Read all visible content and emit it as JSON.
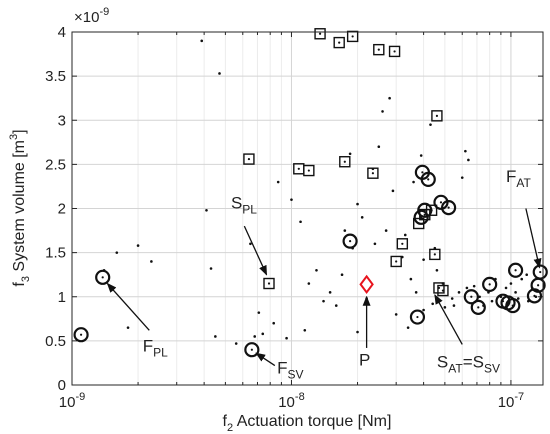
{
  "chart_data": {
    "type": "scatter",
    "xlabel_main": "f",
    "xlabel_sub": "2",
    "xlabel_rest": " Actuation torque [Nm]",
    "ylabel_main": "f",
    "ylabel_sub": "3",
    "ylabel_rest": " System volume [m",
    "ylabel_sup": "3",
    "ylabel_end": "]",
    "x_scale": "log",
    "xlim": [
      1e-09,
      1.4e-07
    ],
    "ylim": [
      0,
      4
    ],
    "y_multiplier_base": "×10",
    "y_multiplier_exp": "-9",
    "grid": true,
    "x_ticks": [
      {
        "value": 1e-09,
        "base": "10",
        "exp": "-9"
      },
      {
        "value": 1e-08,
        "base": "10",
        "exp": "-8"
      },
      {
        "value": 1e-07,
        "base": "10",
        "exp": "-7"
      }
    ],
    "y_ticks": [
      {
        "value": 0,
        "label": "0"
      },
      {
        "value": 0.5,
        "label": "0.5"
      },
      {
        "value": 1,
        "label": "1"
      },
      {
        "value": 1.5,
        "label": "1.5"
      },
      {
        "value": 2,
        "label": "2"
      },
      {
        "value": 2.5,
        "label": "2.5"
      },
      {
        "value": 3,
        "label": "3"
      },
      {
        "value": 3.5,
        "label": "3.5"
      },
      {
        "value": 4,
        "label": "4"
      }
    ],
    "dots": [
      [
        3.9e-09,
        3.9
      ],
      [
        4.7e-09,
        3.53
      ],
      [
        1.6e-09,
        1.5
      ],
      [
        2e-09,
        1.58
      ],
      [
        2.3e-09,
        1.4
      ],
      [
        1.4e-09,
        1.3
      ],
      [
        4.3e-09,
        1.32
      ],
      [
        4.5e-09,
        0.55
      ],
      [
        4.1e-09,
        1.98
      ],
      [
        1.8e-09,
        0.65
      ],
      [
        6.5e-09,
        1.6
      ],
      [
        7.1e-09,
        0.82
      ],
      [
        7.4e-09,
        0.58
      ],
      [
        8.3e-09,
        0.7
      ],
      [
        9.5e-09,
        0.53
      ],
      [
        1.1e-08,
        1.85
      ],
      [
        1.2e-08,
        1.15
      ],
      [
        1.4e-08,
        0.95
      ],
      [
        1.5e-08,
        1.05
      ],
      [
        1.7e-08,
        1.25
      ],
      [
        1.9e-08,
        1.55
      ],
      [
        2e-08,
        2.05
      ],
      [
        2.1e-08,
        1.9
      ],
      [
        2.2e-08,
        0.98
      ],
      [
        2.5e-08,
        2.7
      ],
      [
        2.6e-08,
        3.1
      ],
      [
        2.8e-08,
        3.25
      ],
      [
        2.9e-08,
        2.2
      ],
      [
        3.2e-08,
        1.45
      ],
      [
        3.3e-08,
        1.7
      ],
      [
        3.5e-08,
        1.2
      ],
      [
        2.7e-08,
        1.75
      ],
      [
        2.4e-08,
        1.6
      ],
      [
        1.3e-08,
        1.3
      ],
      [
        1.6e-08,
        0.9
      ],
      [
        3e-08,
        0.8
      ],
      [
        3.6e-08,
        2.3
      ],
      [
        3.9e-08,
        2.6
      ],
      [
        4.3e-08,
        2.95
      ],
      [
        4.5e-08,
        1.55
      ],
      [
        4.6e-08,
        1.3
      ],
      [
        4.9e-08,
        1.15
      ],
      [
        5.4e-08,
        0.98
      ],
      [
        5.8e-08,
        1.05
      ],
      [
        6.3e-08,
        1.1
      ],
      [
        6.8e-08,
        1.12
      ],
      [
        7.2e-08,
        1.0
      ],
      [
        7.9e-08,
        1.05
      ],
      [
        8.5e-08,
        1.2
      ],
      [
        9e-08,
        1.0
      ],
      [
        9.5e-08,
        1.1
      ],
      [
        1e-07,
        1.15
      ],
      [
        1.05e-07,
        1.05
      ],
      [
        1.12e-07,
        1.2
      ],
      [
        1.18e-07,
        1.25
      ],
      [
        1.25e-07,
        1.1
      ],
      [
        1.3e-07,
        1.0
      ],
      [
        6.2e-08,
        2.65
      ],
      [
        6.4e-08,
        2.55
      ],
      [
        6e-08,
        2.35
      ],
      [
        3.4e-08,
        0.65
      ],
      [
        4e-08,
        0.85
      ],
      [
        4.4e-08,
        0.92
      ],
      [
        5e-08,
        0.88
      ],
      [
        5.5e-08,
        0.9
      ],
      [
        1e-08,
        2.1
      ],
      [
        8.7e-09,
        2.3
      ],
      [
        2.35e-08,
        2.45
      ],
      [
        1.85e-08,
        2.62
      ],
      [
        4e-08,
        1.42
      ],
      [
        3.7e-08,
        1.05
      ],
      [
        7.5e-08,
        0.9
      ],
      [
        8.2e-08,
        0.95
      ],
      [
        1.08e-07,
        0.98
      ],
      [
        1.2e-07,
        0.95
      ],
      [
        2e-08,
        0.6
      ],
      [
        1.75e-08,
        1.75
      ],
      [
        5.6e-09,
        0.47
      ],
      [
        6.8e-09,
        0.55
      ],
      [
        1.15e-08,
        0.62
      ]
    ],
    "squares": [
      [
        1.35e-08,
        3.98
      ],
      [
        1.65e-08,
        3.88
      ],
      [
        1.9e-08,
        3.95
      ],
      [
        2.5e-08,
        3.8
      ],
      [
        2.95e-08,
        3.78
      ],
      [
        4.6e-08,
        3.05
      ],
      [
        6.4e-09,
        2.56
      ],
      [
        1.08e-08,
        2.45
      ],
      [
        1.2e-08,
        2.43
      ],
      [
        1.75e-08,
        2.53
      ],
      [
        2.35e-08,
        2.4
      ],
      [
        3e-08,
        1.4
      ],
      [
        3.2e-08,
        1.6
      ],
      [
        3.8e-08,
        1.83
      ],
      [
        4.05e-08,
        1.93
      ],
      [
        4.35e-08,
        1.98
      ],
      [
        4.5e-08,
        1.48
      ],
      [
        4.7e-08,
        1.1
      ],
      [
        4.9e-08,
        1.07
      ],
      [
        7.9e-09,
        1.15
      ]
    ],
    "circles": [
      [
        1.1e-09,
        0.57
      ],
      [
        1.38e-09,
        1.22
      ],
      [
        6.6e-09,
        0.4
      ],
      [
        1.85e-08,
        1.63
      ],
      [
        3.75e-08,
        0.77
      ],
      [
        3.95e-08,
        2.41
      ],
      [
        4.2e-08,
        2.33
      ],
      [
        3.9e-08,
        1.9
      ],
      [
        4.05e-08,
        1.98
      ],
      [
        4.8e-08,
        2.07
      ],
      [
        5.2e-08,
        2.01
      ],
      [
        6.6e-08,
        1.0
      ],
      [
        7.1e-08,
        0.88
      ],
      [
        8e-08,
        1.14
      ],
      [
        9.2e-08,
        0.95
      ],
      [
        9.7e-08,
        0.93
      ],
      [
        1.02e-07,
        0.9
      ],
      [
        1.05e-07,
        1.3
      ],
      [
        1.28e-07,
        1.01
      ],
      [
        1.33e-07,
        1.13
      ],
      [
        1.36e-07,
        1.28
      ]
    ],
    "point_P": [
      2.2e-08,
      1.14
    ],
    "marker_color_P": "#e8141e",
    "annotations": [
      {
        "id": "fat",
        "main": "F",
        "sub": "AT",
        "text_x": 9.5e-08,
        "text_y": 2.3,
        "tip_x": 1.35e-07,
        "tip_y": 1.33,
        "tail_x": 1.17e-07,
        "tail_y": 2.0
      },
      {
        "id": "spl",
        "main": "S",
        "sub": "PL",
        "text_x": 5.3e-09,
        "text_y": 2.0,
        "tip_x": 7.7e-09,
        "tip_y": 1.25,
        "tail_x": 6.1e-09,
        "tail_y": 1.8
      },
      {
        "id": "fpl",
        "main": "F",
        "sub": "PL",
        "text_x": 2.1e-09,
        "text_y": 0.38,
        "tip_x": 1.45e-09,
        "tip_y": 1.15,
        "tail_x": 2.25e-09,
        "tail_y": 0.62
      },
      {
        "id": "fsv",
        "main": "F",
        "sub": "SV",
        "text_x": 8.6e-09,
        "text_y": 0.13,
        "tip_x": 6.9e-09,
        "tip_y": 0.36,
        "tail_x": 8.4e-09,
        "tail_y": 0.22
      },
      {
        "id": "p",
        "main": "P",
        "sub": "",
        "text_x": 2.03e-08,
        "text_y": 0.22,
        "tip_x": 2.2e-08,
        "tip_y": 1.0,
        "tail_x": 2.2e-08,
        "tail_y": 0.42
      },
      {
        "id": "sat",
        "main": "S",
        "sub": "AT",
        "extra": "=S",
        "extra_sub": "SV",
        "text_x": 4.6e-08,
        "text_y": 0.2,
        "tip_x": 4.5e-08,
        "tip_y": 1.02,
        "tail_x": 6e-08,
        "tail_y": 0.46
      }
    ]
  }
}
